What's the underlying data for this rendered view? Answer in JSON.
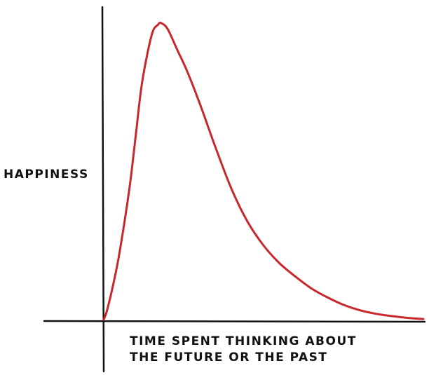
{
  "chart_data": {
    "type": "line",
    "title": "",
    "xlabel_lines": [
      "TIME SPENT THINKING ABOUT",
      "THE FUTURE OR THE PAST"
    ],
    "ylabel": "HAPPINESS",
    "xlim": [
      0,
      10
    ],
    "ylim": [
      0,
      10
    ],
    "grid": false,
    "legend": "none",
    "colors": {
      "curve": "#c8282d",
      "axes": "#111111"
    },
    "series": [
      {
        "x": [
          0,
          0.1,
          0.3,
          0.5,
          0.8,
          1.0,
          1.2,
          1.5,
          1.7,
          1.8,
          2.0,
          2.3,
          2.6,
          3.0,
          3.5,
          4.0,
          4.5,
          5.0,
          5.5,
          6.0,
          6.5,
          7.0,
          7.5,
          8.0,
          8.5,
          9.0,
          9.5,
          10.0
        ],
        "y": [
          0,
          0.3,
          1.2,
          2.3,
          4.4,
          6.2,
          8.0,
          9.6,
          9.95,
          10.0,
          9.8,
          9.1,
          8.4,
          7.3,
          5.8,
          4.4,
          3.3,
          2.5,
          1.9,
          1.45,
          1.05,
          0.75,
          0.5,
          0.32,
          0.2,
          0.12,
          0.06,
          0.02
        ]
      }
    ]
  }
}
